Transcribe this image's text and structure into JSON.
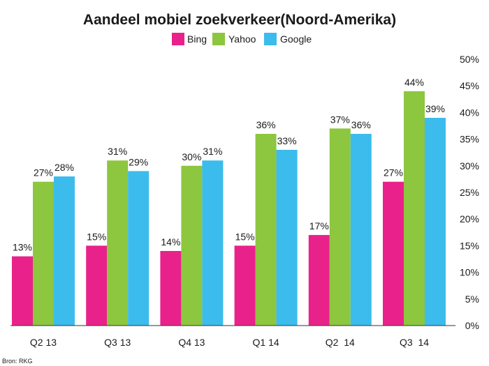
{
  "chart_data": {
    "type": "bar",
    "title": "Aandeel mobiel zoekverkeer(Noord-Amerika)",
    "categories": [
      "Q2 13",
      "Q3 13",
      "Q4 13",
      "Q1 14",
      "Q2  14",
      "Q3  14"
    ],
    "series": [
      {
        "name": "Bing",
        "color": "#e8228a",
        "values": [
          13,
          15,
          14,
          15,
          17,
          27
        ],
        "labels": [
          "13%",
          "15%",
          "14%",
          "15%",
          "17%",
          "27%"
        ]
      },
      {
        "name": "Yahoo",
        "color": "#8dc63f",
        "values": [
          27,
          31,
          30,
          36,
          37,
          44
        ],
        "labels": [
          "27%",
          "31%",
          "30%",
          "36%",
          "37%",
          "44%"
        ]
      },
      {
        "name": "Google",
        "color": "#3bbcec",
        "values": [
          28,
          29,
          31,
          33,
          36,
          39
        ],
        "labels": [
          "28%",
          "29%",
          "31%",
          "33%",
          "36%",
          "39%"
        ]
      }
    ],
    "y_axis": {
      "ticks": [
        0,
        5,
        10,
        15,
        20,
        25,
        30,
        35,
        40,
        45,
        50
      ],
      "tick_labels": [
        "0%",
        "5%",
        "10%",
        "15%",
        "20%",
        "25%",
        "30%",
        "35%",
        "40%",
        "45%",
        "50%"
      ],
      "ylim": [
        0,
        50
      ],
      "position": "right"
    },
    "xlabel": "",
    "ylabel": "",
    "legend": "top-center",
    "grid": false,
    "source": "Bron: RKG"
  }
}
